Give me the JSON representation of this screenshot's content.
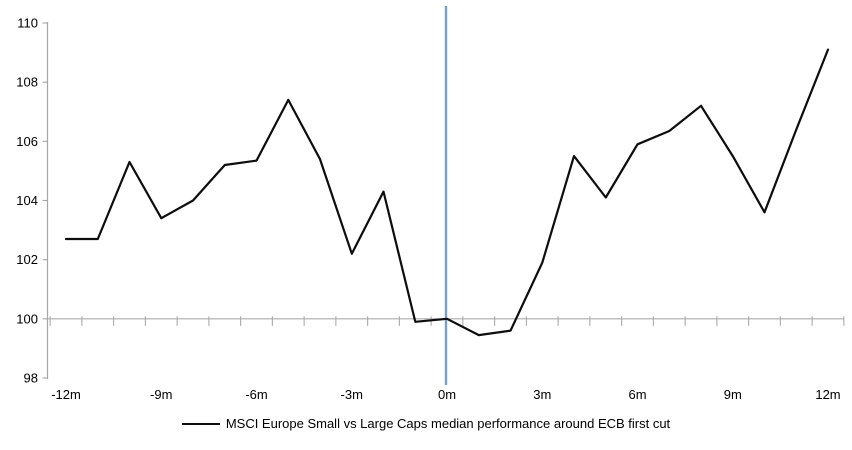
{
  "chart_data": {
    "type": "line",
    "title": "",
    "xlabel": "",
    "ylabel": "",
    "xlim": [
      -12,
      12
    ],
    "ylim": [
      98,
      110
    ],
    "grid": "off (only baseline at 100)",
    "x": [
      -12,
      -11,
      -10,
      -9,
      -8,
      -7,
      -6,
      -5,
      -4,
      -3,
      -2,
      -1,
      0,
      1,
      2,
      3,
      4,
      5,
      6,
      7,
      8,
      9,
      10,
      11,
      12
    ],
    "series": [
      {
        "name": "MSCI Europe Small vs Large Caps median performance around ECB first cut",
        "color": "#0d0d0d",
        "values": [
          102.7,
          102.7,
          105.3,
          103.4,
          104.0,
          105.2,
          105.35,
          107.4,
          105.4,
          102.2,
          104.3,
          99.9,
          100.0,
          99.45,
          99.6,
          101.9,
          105.5,
          104.1,
          105.9,
          106.35,
          107.2,
          105.5,
          103.6,
          106.4,
          109.1
        ]
      }
    ],
    "y_ticks": [
      98,
      100,
      102,
      104,
      106,
      108,
      110
    ],
    "x_tick_months": [
      -12,
      -9,
      -6,
      -3,
      0,
      3,
      6,
      9,
      12
    ],
    "x_tick_labels": [
      "-12m",
      "-9m",
      "-6m",
      "-3m",
      "0m",
      "3m",
      "6m",
      "9m",
      "12m"
    ],
    "baseline": {
      "value": 100,
      "color": "#ababab"
    },
    "event_line": {
      "x": 0,
      "color": "#76a0cd"
    },
    "axis_color": "#a6a6a6",
    "legend": {
      "label": "MSCI Europe Small vs Large Caps median performance around ECB first cut",
      "position": "bottom-center",
      "marker": "line"
    }
  }
}
